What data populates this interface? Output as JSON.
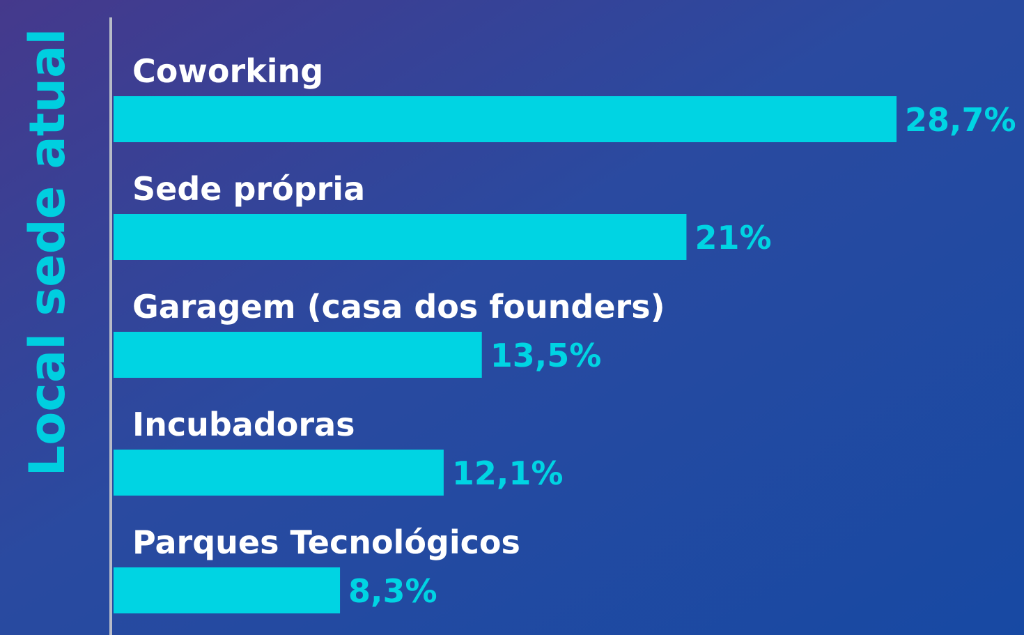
{
  "chart_data": {
    "type": "bar",
    "orientation": "horizontal",
    "title": "Local sede atual",
    "categories": [
      "Coworking",
      "Sede própria",
      "Garagem (casa dos founders)",
      "Incubadoras",
      "Parques Tecnológicos"
    ],
    "values": [
      28.7,
      21,
      13.5,
      12.1,
      8.3
    ],
    "value_labels": [
      "28,7%",
      "21%",
      "13,5%",
      "12,1%",
      "8,3%"
    ],
    "color": "#00d4e3"
  }
}
